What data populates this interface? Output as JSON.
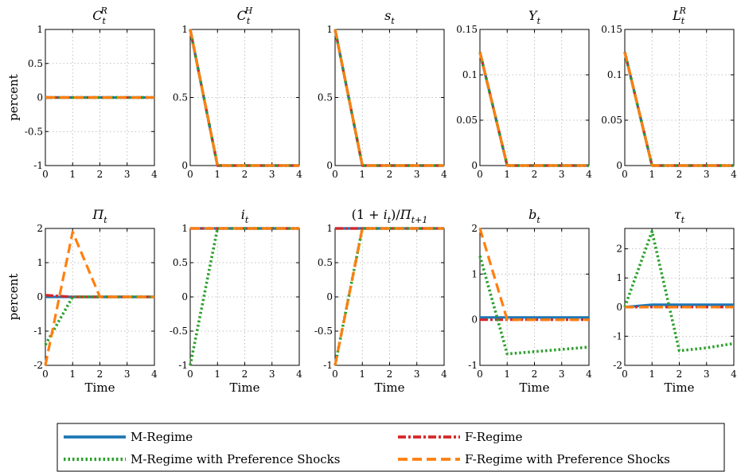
{
  "colors": {
    "m_regime": "#1f77b4",
    "f_regime": "#d62728",
    "m_regime_pref": "#2ca02c",
    "f_regime_pref": "#ff7f0e"
  },
  "legend": {
    "items": [
      {
        "key": "m_regime",
        "label": "M-Regime",
        "style": "solid"
      },
      {
        "key": "f_regime",
        "label": "F-Regime",
        "style": "dashdot"
      },
      {
        "key": "m_regime_pref",
        "label": "M-Regime with Preference Shocks",
        "style": "dotted"
      },
      {
        "key": "f_regime_pref",
        "label": "F-Regime with Preference Shocks",
        "style": "dashed"
      }
    ]
  },
  "chart_data": [
    {
      "type": "line",
      "title": "C_t^R",
      "ylabel": "percent",
      "xlabel": "",
      "xlim": [
        0,
        4
      ],
      "ylim": [
        -1,
        1
      ],
      "yticks": [
        -1,
        -0.5,
        0,
        0.5,
        1
      ],
      "yticklabels": [
        "-1",
        "-0.5",
        "0",
        "0.5",
        "1"
      ],
      "xticks": [
        0,
        1,
        2,
        3,
        4
      ],
      "grid": true,
      "series": [
        {
          "key": "m_regime",
          "x": [
            0,
            1,
            2,
            3,
            4
          ],
          "y": [
            0,
            0,
            0,
            0,
            0
          ]
        },
        {
          "key": "f_regime",
          "x": [
            0,
            1,
            2,
            3,
            4
          ],
          "y": [
            0,
            0,
            0,
            0,
            0
          ]
        },
        {
          "key": "m_regime_pref",
          "x": [
            0,
            1,
            2,
            3,
            4
          ],
          "y": [
            0,
            0,
            0,
            0,
            0
          ]
        },
        {
          "key": "f_regime_pref",
          "x": [
            0,
            1,
            2,
            3,
            4
          ],
          "y": [
            0,
            0,
            0,
            0,
            0
          ]
        }
      ]
    },
    {
      "type": "line",
      "title": "C_t^H",
      "ylabel": "",
      "xlabel": "",
      "xlim": [
        0,
        4
      ],
      "ylim": [
        0,
        1
      ],
      "yticks": [
        0,
        0.5,
        1
      ],
      "yticklabels": [
        "0",
        "0.5",
        "1"
      ],
      "xticks": [
        0,
        1,
        2,
        3,
        4
      ],
      "grid": true,
      "series": [
        {
          "key": "m_regime",
          "x": [
            0,
            1,
            2,
            3,
            4
          ],
          "y": [
            1,
            0,
            0,
            0,
            0
          ]
        },
        {
          "key": "f_regime",
          "x": [
            0,
            1,
            2,
            3,
            4
          ],
          "y": [
            1,
            0,
            0,
            0,
            0
          ]
        },
        {
          "key": "m_regime_pref",
          "x": [
            0,
            1,
            2,
            3,
            4
          ],
          "y": [
            1,
            0,
            0,
            0,
            0
          ]
        },
        {
          "key": "f_regime_pref",
          "x": [
            0,
            1,
            2,
            3,
            4
          ],
          "y": [
            1,
            0,
            0,
            0,
            0
          ]
        }
      ]
    },
    {
      "type": "line",
      "title": "s_t",
      "ylabel": "",
      "xlabel": "",
      "xlim": [
        0,
        4
      ],
      "ylim": [
        0,
        1
      ],
      "yticks": [
        0,
        0.5,
        1
      ],
      "yticklabels": [
        "0",
        "0.5",
        "1"
      ],
      "xticks": [
        0,
        1,
        2,
        3,
        4
      ],
      "grid": true,
      "series": [
        {
          "key": "m_regime",
          "x": [
            0,
            1,
            2,
            3,
            4
          ],
          "y": [
            1,
            0,
            0,
            0,
            0
          ]
        },
        {
          "key": "f_regime",
          "x": [
            0,
            1,
            2,
            3,
            4
          ],
          "y": [
            1,
            0,
            0,
            0,
            0
          ]
        },
        {
          "key": "m_regime_pref",
          "x": [
            0,
            1,
            2,
            3,
            4
          ],
          "y": [
            1,
            0,
            0,
            0,
            0
          ]
        },
        {
          "key": "f_regime_pref",
          "x": [
            0,
            1,
            2,
            3,
            4
          ],
          "y": [
            1,
            0,
            0,
            0,
            0
          ]
        }
      ]
    },
    {
      "type": "line",
      "title": "Y_t",
      "ylabel": "",
      "xlabel": "",
      "xlim": [
        0,
        4
      ],
      "ylim": [
        0,
        0.15
      ],
      "yticks": [
        0,
        0.05,
        0.1,
        0.15
      ],
      "yticklabels": [
        "0",
        "0.05",
        "0.1",
        "0.15"
      ],
      "xticks": [
        0,
        1,
        2,
        3,
        4
      ],
      "grid": true,
      "series": [
        {
          "key": "m_regime",
          "x": [
            0,
            1,
            2,
            3,
            4
          ],
          "y": [
            0.125,
            0,
            0,
            0,
            0
          ]
        },
        {
          "key": "f_regime",
          "x": [
            0,
            1,
            2,
            3,
            4
          ],
          "y": [
            0.125,
            0,
            0,
            0,
            0
          ]
        },
        {
          "key": "m_regime_pref",
          "x": [
            0,
            1,
            2,
            3,
            4
          ],
          "y": [
            0.125,
            0,
            0,
            0,
            0
          ]
        },
        {
          "key": "f_regime_pref",
          "x": [
            0,
            1,
            2,
            3,
            4
          ],
          "y": [
            0.125,
            0,
            0,
            0,
            0
          ]
        }
      ]
    },
    {
      "type": "line",
      "title": "L_t^R",
      "ylabel": "",
      "xlabel": "",
      "xlim": [
        0,
        4
      ],
      "ylim": [
        0,
        0.15
      ],
      "yticks": [
        0,
        0.05,
        0.1,
        0.15
      ],
      "yticklabels": [
        "0",
        "0.05",
        "0.1",
        "0.15"
      ],
      "xticks": [
        0,
        1,
        2,
        3,
        4
      ],
      "grid": true,
      "series": [
        {
          "key": "m_regime",
          "x": [
            0,
            1,
            2,
            3,
            4
          ],
          "y": [
            0.125,
            0,
            0,
            0,
            0
          ]
        },
        {
          "key": "f_regime",
          "x": [
            0,
            1,
            2,
            3,
            4
          ],
          "y": [
            0.125,
            0,
            0,
            0,
            0
          ]
        },
        {
          "key": "m_regime_pref",
          "x": [
            0,
            1,
            2,
            3,
            4
          ],
          "y": [
            0.125,
            0,
            0,
            0,
            0
          ]
        },
        {
          "key": "f_regime_pref",
          "x": [
            0,
            1,
            2,
            3,
            4
          ],
          "y": [
            0.125,
            0,
            0,
            0,
            0
          ]
        }
      ]
    },
    {
      "type": "line",
      "title": "Π_t",
      "ylabel": "percent",
      "xlabel": "Time",
      "xlim": [
        0,
        4
      ],
      "ylim": [
        -2,
        2
      ],
      "yticks": [
        -2,
        -1,
        0,
        1,
        2
      ],
      "yticklabels": [
        "-2",
        "-1",
        "0",
        "1",
        "2"
      ],
      "xticks": [
        0,
        1,
        2,
        3,
        4
      ],
      "grid": true,
      "series": [
        {
          "key": "m_regime",
          "x": [
            0,
            1,
            2,
            3,
            4
          ],
          "y": [
            0,
            0,
            0,
            0,
            0
          ]
        },
        {
          "key": "f_regime",
          "x": [
            0,
            1,
            2,
            3,
            4
          ],
          "y": [
            0.05,
            0,
            0,
            0,
            0
          ]
        },
        {
          "key": "m_regime_pref",
          "x": [
            0,
            1,
            2,
            3,
            4
          ],
          "y": [
            -1.4,
            0,
            0,
            0,
            0
          ]
        },
        {
          "key": "f_regime_pref",
          "x": [
            0,
            1,
            2,
            3,
            4
          ],
          "y": [
            -2,
            1.9,
            0,
            0,
            0
          ]
        }
      ]
    },
    {
      "type": "line",
      "title": "i_t",
      "ylabel": "",
      "xlabel": "Time",
      "xlim": [
        0,
        4
      ],
      "ylim": [
        -1,
        1
      ],
      "yticks": [
        -1,
        -0.5,
        0,
        0.5,
        1
      ],
      "yticklabels": [
        "-1",
        "-0.5",
        "0",
        "0.5",
        "1"
      ],
      "xticks": [
        0,
        1,
        2,
        3,
        4
      ],
      "grid": true,
      "series": [
        {
          "key": "m_regime",
          "x": [
            0,
            1,
            2,
            3,
            4
          ],
          "y": [
            1,
            1,
            1,
            1,
            1
          ]
        },
        {
          "key": "f_regime",
          "x": [
            0,
            1,
            2,
            3,
            4
          ],
          "y": [
            1,
            1,
            1,
            1,
            1
          ]
        },
        {
          "key": "m_regime_pref",
          "x": [
            0,
            1,
            2,
            3,
            4
          ],
          "y": [
            -1,
            1,
            1,
            1,
            1
          ]
        },
        {
          "key": "f_regime_pref",
          "x": [
            0,
            1,
            2,
            3,
            4
          ],
          "y": [
            1,
            1,
            1,
            1,
            1
          ]
        }
      ]
    },
    {
      "type": "line",
      "title": "(1 + i_t)/Π_{t+1}",
      "ylabel": "",
      "xlabel": "Time",
      "xlim": [
        0,
        4
      ],
      "ylim": [
        -1,
        1
      ],
      "yticks": [
        -1,
        -0.5,
        0,
        0.5,
        1
      ],
      "yticklabels": [
        "-1",
        "-0.5",
        "0",
        "0.5",
        "1"
      ],
      "xticks": [
        0,
        1,
        2,
        3,
        4
      ],
      "grid": true,
      "series": [
        {
          "key": "m_regime",
          "x": [
            0,
            1,
            2,
            3,
            4
          ],
          "y": [
            1,
            1,
            1,
            1,
            1
          ]
        },
        {
          "key": "f_regime",
          "x": [
            0,
            1,
            2,
            3,
            4
          ],
          "y": [
            1,
            1,
            1,
            1,
            1
          ]
        },
        {
          "key": "m_regime_pref",
          "x": [
            0,
            1,
            2,
            3,
            4
          ],
          "y": [
            -1,
            1,
            1,
            1,
            1
          ]
        },
        {
          "key": "f_regime_pref",
          "x": [
            0,
            1,
            2,
            3,
            4
          ],
          "y": [
            -1,
            1,
            1,
            1,
            1
          ]
        }
      ]
    },
    {
      "type": "line",
      "title": "b_t",
      "ylabel": "",
      "xlabel": "Time",
      "xlim": [
        0,
        4
      ],
      "ylim": [
        -1,
        2
      ],
      "yticks": [
        -1,
        0,
        1,
        2
      ],
      "yticklabels": [
        "-1",
        "0",
        "1",
        "2"
      ],
      "xticks": [
        0,
        1,
        2,
        3,
        4
      ],
      "grid": true,
      "series": [
        {
          "key": "m_regime",
          "x": [
            0,
            1,
            2,
            3,
            4
          ],
          "y": [
            0.05,
            0.05,
            0.05,
            0.05,
            0.05
          ]
        },
        {
          "key": "f_regime",
          "x": [
            0,
            1,
            2,
            3,
            4
          ],
          "y": [
            0,
            0,
            0,
            0,
            0
          ]
        },
        {
          "key": "m_regime_pref",
          "x": [
            0,
            1,
            2,
            3,
            4
          ],
          "y": [
            1.4,
            -0.75,
            -0.7,
            -0.65,
            -0.6
          ]
        },
        {
          "key": "f_regime_pref",
          "x": [
            0,
            1,
            2,
            3,
            4
          ],
          "y": [
            2,
            0,
            0,
            0,
            0
          ]
        }
      ]
    },
    {
      "type": "line",
      "title": "τ_t",
      "ylabel": "",
      "xlabel": "Time",
      "xlim": [
        0,
        4
      ],
      "ylim": [
        -2,
        2.7
      ],
      "yticks": [
        -2,
        -1,
        0,
        1,
        2
      ],
      "yticklabels": [
        "-2",
        "-1",
        "0",
        "1",
        "2"
      ],
      "xticks": [
        0,
        1,
        2,
        3,
        4
      ],
      "grid": true,
      "series": [
        {
          "key": "m_regime",
          "x": [
            0,
            1,
            2,
            3,
            4
          ],
          "y": [
            0,
            0.08,
            0.08,
            0.08,
            0.08
          ]
        },
        {
          "key": "f_regime",
          "x": [
            0,
            1,
            2,
            3,
            4
          ],
          "y": [
            0,
            0,
            0,
            0,
            0
          ]
        },
        {
          "key": "m_regime_pref",
          "x": [
            0,
            1,
            2,
            3,
            4
          ],
          "y": [
            0,
            2.6,
            -1.5,
            -1.4,
            -1.25
          ]
        },
        {
          "key": "f_regime_pref",
          "x": [
            0,
            1,
            2,
            3,
            4
          ],
          "y": [
            0,
            0,
            0,
            0,
            0
          ]
        }
      ]
    }
  ]
}
